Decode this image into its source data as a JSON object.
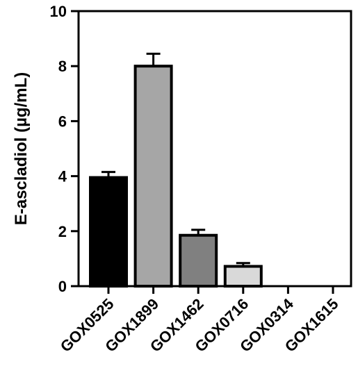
{
  "chart_data": {
    "type": "bar",
    "title": "",
    "xlabel": "",
    "ylabel": "E-ascladiol (µg/mL)",
    "ylim": [
      0,
      10
    ],
    "yticks": [
      0,
      2,
      4,
      6,
      8,
      10
    ],
    "grid": false,
    "categories": [
      "GOX0525",
      "GOX1899",
      "GOX1462",
      "GOX0716",
      "GOX0314",
      "GOX1615"
    ],
    "values": [
      3.95,
      8.0,
      1.85,
      0.72,
      0,
      0
    ],
    "errors": [
      0.2,
      0.45,
      0.2,
      0.12,
      0,
      0
    ],
    "colors": [
      "#000000",
      "#a6a6a6",
      "#808080",
      "#d9d9d9",
      "#ffffff",
      "#ffffff"
    ]
  }
}
